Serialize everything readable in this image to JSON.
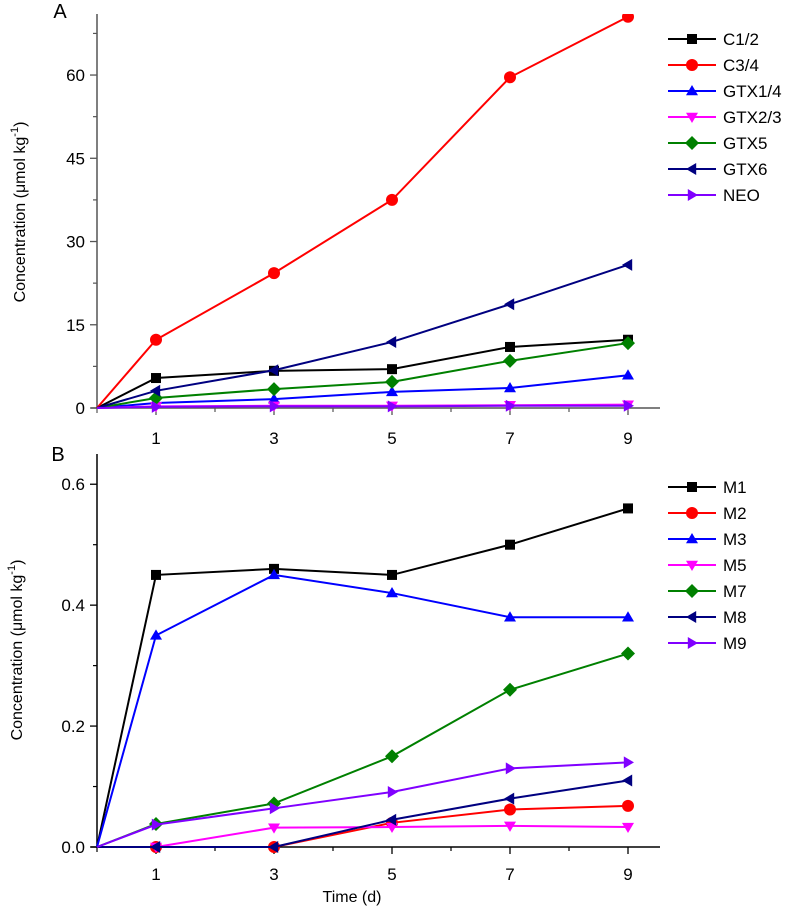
{
  "chart_data": [
    {
      "type": "line",
      "panel_label": "A",
      "title": "",
      "xlabel": "",
      "ylabel": "Concentration (μmol kg",
      "ylabel_sup": "-1",
      "ylabel_close": ")",
      "x": [
        0,
        1,
        3,
        5,
        7,
        9
      ],
      "xlim": [
        0,
        9.5
      ],
      "ylim": [
        0,
        71
      ],
      "xticks": [
        1,
        3,
        5,
        7,
        9
      ],
      "xtick_labels": [
        "1",
        "3",
        "5",
        "7",
        "9"
      ],
      "xminor": [
        2,
        4,
        6,
        8
      ],
      "yticks": [
        0,
        15,
        30,
        45,
        60
      ],
      "ytick_labels": [
        "0",
        "15",
        "30",
        "45",
        "60"
      ],
      "yminor": [
        7.5,
        22.5,
        37.5,
        52.5,
        67.5
      ],
      "grid": false,
      "legend_position": "top-right",
      "series": [
        {
          "name": "C1/2",
          "color": "#000000",
          "marker": "square",
          "values": [
            0,
            5.4,
            6.7,
            7.0,
            11.0,
            12.3
          ]
        },
        {
          "name": "C3/4",
          "color": "#ff0000",
          "marker": "circle",
          "values": [
            0,
            12.3,
            24.3,
            37.5,
            59.6,
            70.5
          ]
        },
        {
          "name": "GTX1/4",
          "color": "#0000ff",
          "marker": "triangle-up",
          "values": [
            0,
            0.9,
            1.6,
            2.9,
            3.6,
            5.9
          ]
        },
        {
          "name": "GTX2/3",
          "color": "#ff00ff",
          "marker": "triangle-down",
          "values": [
            0,
            0.3,
            0.4,
            0.4,
            0.5,
            0.6
          ]
        },
        {
          "name": "GTX5",
          "color": "#008000",
          "marker": "diamond",
          "values": [
            0,
            1.8,
            3.4,
            4.7,
            8.5,
            11.7
          ]
        },
        {
          "name": "GTX6",
          "color": "#000080",
          "marker": "triangle-left",
          "values": [
            0,
            3.1,
            6.8,
            11.9,
            18.7,
            25.8
          ]
        },
        {
          "name": "NEO",
          "color": "#8000ff",
          "marker": "triangle-right",
          "values": [
            0,
            0.2,
            0.3,
            0.3,
            0.4,
            0.4
          ]
        }
      ]
    },
    {
      "type": "line",
      "panel_label": "B",
      "title": "",
      "xlabel": "Time (d)",
      "ylabel": "Concentration (μmol kg",
      "ylabel_sup": "-1",
      "ylabel_close": ")",
      "x": [
        0,
        1,
        3,
        5,
        7,
        9
      ],
      "xlim": [
        0,
        9.5
      ],
      "ylim": [
        0,
        0.65
      ],
      "xticks": [
        1,
        3,
        5,
        7,
        9
      ],
      "xtick_labels": [
        "1",
        "3",
        "5",
        "7",
        "9"
      ],
      "xminor": [
        2,
        4,
        6,
        8
      ],
      "yticks": [
        0,
        0.2,
        0.4,
        0.6
      ],
      "ytick_labels": [
        "0.0",
        "0.2",
        "0.4",
        "0.6"
      ],
      "yminor": [
        0.1,
        0.3,
        0.5
      ],
      "grid": false,
      "legend_position": "top-right",
      "series": [
        {
          "name": "M1",
          "color": "#000000",
          "marker": "square",
          "values": [
            0,
            0.45,
            0.46,
            0.45,
            0.5,
            0.56
          ]
        },
        {
          "name": "M2",
          "color": "#ff0000",
          "marker": "circle",
          "values": [
            0,
            0,
            0,
            0.04,
            0.062,
            0.068
          ]
        },
        {
          "name": "M3",
          "color": "#0000ff",
          "marker": "triangle-up",
          "values": [
            0,
            0.35,
            0.45,
            0.42,
            0.38,
            0.38
          ]
        },
        {
          "name": "M5",
          "color": "#ff00ff",
          "marker": "triangle-down",
          "values": [
            0,
            0,
            0.032,
            0.033,
            0.035,
            0.033
          ]
        },
        {
          "name": "M7",
          "color": "#008000",
          "marker": "diamond",
          "values": [
            0,
            0.038,
            0.072,
            0.15,
            0.26,
            0.32
          ]
        },
        {
          "name": "M8",
          "color": "#000080",
          "marker": "triangle-left",
          "values": [
            0,
            0,
            0,
            0.045,
            0.08,
            0.11
          ]
        },
        {
          "name": "M9",
          "color": "#8000ff",
          "marker": "triangle-right",
          "values": [
            0,
            0.037,
            0.064,
            0.091,
            0.13,
            0.14
          ]
        }
      ]
    }
  ]
}
